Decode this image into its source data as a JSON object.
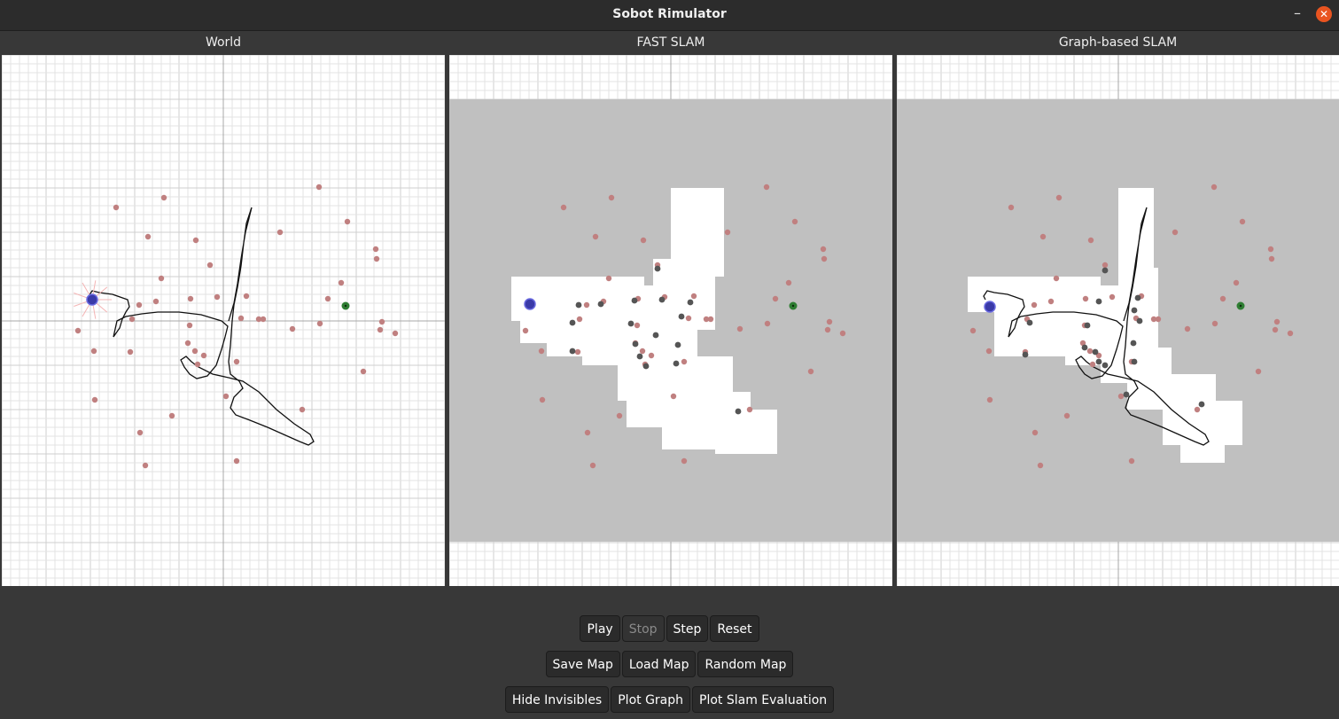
{
  "window": {
    "title": "Sobot Rimulator",
    "minimize_glyph": "–",
    "close_glyph": "✕"
  },
  "panels": [
    {
      "label": "World"
    },
    {
      "label": "FAST SLAM"
    },
    {
      "label": "Graph-based SLAM"
    }
  ],
  "colors": {
    "landmark": "#c08080",
    "estimate": "#555555",
    "robot": "#3a3aa8",
    "goal": "#2e7d32",
    "unknown": "#c0c0c0",
    "trajectory": "#111111",
    "grid_minor": "#e3e3e3",
    "grid_major": "#a8a8a8"
  },
  "toolbar": {
    "play": "Play",
    "stop": "Stop",
    "step": "Step",
    "reset": "Reset",
    "save_map": "Save Map",
    "load_map": "Load Map",
    "random_map": "Random Map",
    "hide_invisibles": "Hide Invisibles",
    "plot_graph": "Plot Graph",
    "plot_slam_evaluation": "Plot Slam Evaluation",
    "stop_enabled": false
  },
  "icons": [
    "minimize-icon",
    "close-icon",
    "robot-icon",
    "goal-icon"
  ]
}
